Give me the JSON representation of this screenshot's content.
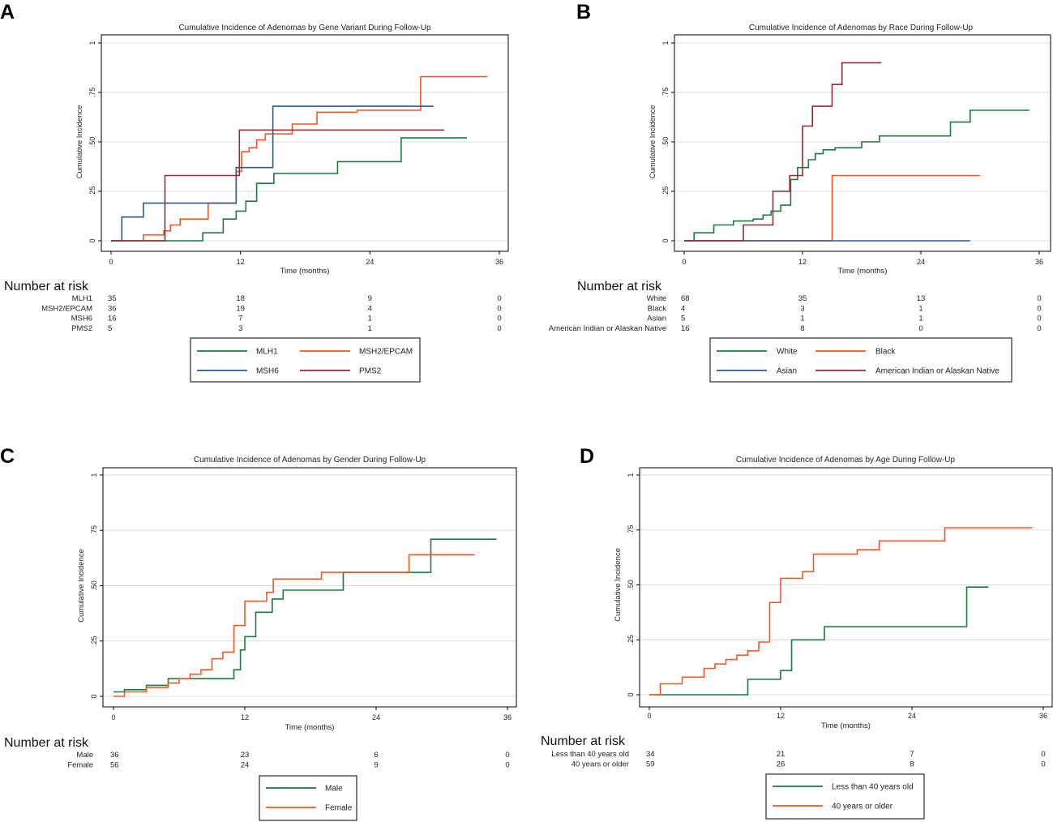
{
  "colors": {
    "green": "#1d7a3e",
    "orange": "#ef5a2a",
    "blue": "#2b5a86",
    "maroon": "#8b2f34",
    "grid": "#dcdcdc",
    "frame": "#000000"
  },
  "chart_data": [
    {
      "type": "line",
      "panel": "A",
      "title": "Cumulative Incidence of Adenomas by Gene Variant During Follow-Up",
      "xlabel": "Time (months)",
      "ylabel": "Cumulative Incidence",
      "xlim": [
        0,
        36
      ],
      "ylim": [
        0,
        1
      ],
      "xticks": [
        0,
        12,
        24,
        36
      ],
      "yticks": [
        0,
        0.25,
        0.5,
        0.75,
        1
      ],
      "ytick_labels": [
        "0",
        ".25",
        ".50",
        ".75",
        "1"
      ],
      "grid": true,
      "series": [
        {
          "name": "MLH1",
          "color": "green",
          "x": [
            0,
            7.9,
            8.5,
            10.4,
            11.6,
            12.5,
            13.5,
            15.1,
            18.0,
            21.0,
            26.9,
            33.0
          ],
          "y": [
            0,
            0,
            0.04,
            0.11,
            0.15,
            0.2,
            0.29,
            0.34,
            0.34,
            0.4,
            0.52,
            0.52
          ]
        },
        {
          "name": "MSH2/EPCAM",
          "color": "orange",
          "x": [
            0,
            3.0,
            4.9,
            5.5,
            6.4,
            7.4,
            9.0,
            11.6,
            12.1,
            12.8,
            13.5,
            14.3,
            15.2,
            16.8,
            19.1,
            22.8,
            28.7,
            34.9
          ],
          "y": [
            0,
            0.03,
            0.05,
            0.08,
            0.11,
            0.11,
            0.19,
            0.35,
            0.45,
            0.47,
            0.51,
            0.54,
            0.54,
            0.59,
            0.65,
            0.66,
            0.83,
            0.83
          ]
        },
        {
          "name": "MSH6",
          "color": "blue",
          "x": [
            0,
            1.0,
            3.0,
            11.0,
            11.6,
            15.0,
            29.9
          ],
          "y": [
            0,
            0.12,
            0.19,
            0.19,
            0.37,
            0.68,
            0.68
          ]
        },
        {
          "name": "PMS2",
          "color": "maroon",
          "x": [
            0,
            5.0,
            11.9,
            30.9
          ],
          "y": [
            0,
            0.33,
            0.56,
            0.56
          ]
        }
      ],
      "risk": {
        "title": "Number at risk",
        "times": [
          0,
          12,
          24,
          36
        ],
        "rows": [
          {
            "label": "MLH1",
            "values": [
              "35",
              "18",
              "9",
              "0"
            ]
          },
          {
            "label": "MSH2/EPCAM",
            "values": [
              "36",
              "19",
              "4",
              "0"
            ]
          },
          {
            "label": "MSH6",
            "values": [
              "16",
              "7",
              "1",
              "0"
            ]
          },
          {
            "label": "PMS2",
            "values": [
              "5",
              "3",
              "1",
              "0"
            ]
          }
        ]
      },
      "legend": [
        {
          "label": "MLH1",
          "color": "green"
        },
        {
          "label": "MSH2/EPCAM",
          "color": "orange"
        },
        {
          "label": "MSH6",
          "color": "blue"
        },
        {
          "label": "PMS2",
          "color": "maroon"
        }
      ]
    },
    {
      "type": "line",
      "panel": "B",
      "title": "Cumulative Incidence of Adenomas by Race During Follow-Up",
      "xlabel": "Time (months)",
      "ylabel": "Cumulative Incidence",
      "xlim": [
        0,
        36
      ],
      "ylim": [
        0,
        1
      ],
      "xticks": [
        0,
        12,
        24,
        36
      ],
      "yticks": [
        0,
        0.25,
        0.5,
        0.75,
        1
      ],
      "ytick_labels": [
        "0",
        ".25",
        ".50",
        ".75",
        "1"
      ],
      "grid": true,
      "series": [
        {
          "name": "White",
          "color": "green",
          "x": [
            0,
            1.0,
            3.0,
            5.0,
            7.0,
            8.0,
            8.8,
            9.8,
            10.8,
            11.5,
            12.6,
            13.3,
            14.1,
            15.3,
            18.0,
            19.8,
            27.0,
            29.0,
            35.0
          ],
          "y": [
            0,
            0.04,
            0.08,
            0.1,
            0.11,
            0.13,
            0.15,
            0.18,
            0.31,
            0.37,
            0.41,
            0.44,
            0.46,
            0.47,
            0.5,
            0.53,
            0.6,
            0.66,
            0.66
          ]
        },
        {
          "name": "Black",
          "color": "orange",
          "x": [
            0,
            15.0,
            30.0
          ],
          "y": [
            0,
            0.33,
            0.33
          ]
        },
        {
          "name": "Asian",
          "color": "blue",
          "x": [
            0,
            29.0
          ],
          "y": [
            0,
            0
          ]
        },
        {
          "name": "American Indian or Alaskan Native",
          "color": "maroon",
          "x": [
            0,
            6.0,
            9.0,
            10.7,
            12.0,
            13.0,
            15.0,
            16.0,
            20.0
          ],
          "y": [
            0,
            0.08,
            0.25,
            0.33,
            0.58,
            0.68,
            0.79,
            0.9,
            0.9
          ]
        }
      ],
      "risk": {
        "title": "Number at risk",
        "times": [
          0,
          12,
          24,
          36
        ],
        "rows": [
          {
            "label": "White",
            "values": [
              "68",
              "35",
              "13",
              "0"
            ]
          },
          {
            "label": "Black",
            "values": [
              "4",
              "3",
              "1",
              "0"
            ]
          },
          {
            "label": "Asian",
            "values": [
              "5",
              "1",
              "1",
              "0"
            ]
          },
          {
            "label": "American Indian or Alaskan Native",
            "values": [
              "16",
              "8",
              "0",
              "0"
            ]
          }
        ]
      },
      "legend": [
        {
          "label": "White",
          "color": "green"
        },
        {
          "label": "Black",
          "color": "orange"
        },
        {
          "label": "Asian",
          "color": "blue"
        },
        {
          "label": "American Indian or Alaskan Native",
          "color": "maroon"
        }
      ]
    },
    {
      "type": "line",
      "panel": "C",
      "title": "Cumulative Incidence of Adenomas by Gender During Follow-Up",
      "xlabel": "Time (months)",
      "ylabel": "Cumulative Incidence",
      "xlim": [
        0,
        36
      ],
      "ylim": [
        0,
        1
      ],
      "xticks": [
        0,
        12,
        24,
        36
      ],
      "yticks": [
        0,
        0.25,
        0.5,
        0.75,
        1
      ],
      "ytick_labels": [
        "0",
        ".25",
        ".50",
        ".75",
        "1"
      ],
      "grid": true,
      "series": [
        {
          "name": "Male",
          "color": "green",
          "x": [
            0,
            1.0,
            3.0,
            5.0,
            11.0,
            11.6,
            12.0,
            13.0,
            14.5,
            15.5,
            21.0,
            29.0,
            35.0
          ],
          "y": [
            0.02,
            0.03,
            0.05,
            0.08,
            0.12,
            0.21,
            0.27,
            0.38,
            0.44,
            0.48,
            0.56,
            0.71,
            0.71
          ]
        },
        {
          "name": "Female",
          "color": "orange",
          "x": [
            0,
            1.0,
            3.0,
            5.0,
            6.0,
            7.0,
            8.0,
            9.0,
            10.0,
            11.0,
            12.0,
            14.0,
            14.6,
            19.0,
            27.0,
            33.0
          ],
          "y": [
            0,
            0.02,
            0.04,
            0.06,
            0.08,
            0.1,
            0.12,
            0.17,
            0.2,
            0.32,
            0.43,
            0.47,
            0.53,
            0.56,
            0.64,
            0.64
          ]
        }
      ],
      "risk": {
        "title": "Number at risk",
        "times": [
          0,
          12,
          24,
          36
        ],
        "rows": [
          {
            "label": "Male",
            "values": [
              "36",
              "23",
              "6",
              "0"
            ]
          },
          {
            "label": "Female",
            "values": [
              "56",
              "24",
              "9",
              "0"
            ]
          }
        ]
      },
      "legend": [
        {
          "label": "Male",
          "color": "green"
        },
        {
          "label": "Female",
          "color": "orange"
        }
      ]
    },
    {
      "type": "line",
      "panel": "D",
      "title": "Cumulative Incidence of Adenomas by Age During Follow-Up",
      "xlabel": "Time (months)",
      "ylabel": "Cumulative Incidence",
      "xlim": [
        0,
        36
      ],
      "ylim": [
        0,
        1
      ],
      "xticks": [
        0,
        12,
        24,
        36
      ],
      "yticks": [
        0,
        0.25,
        0.5,
        0.75,
        1
      ],
      "ytick_labels": [
        "0",
        ".25",
        ".50",
        ".75",
        "1"
      ],
      "grid": true,
      "series": [
        {
          "name": "Less than 40 years old",
          "color": "green",
          "x": [
            0,
            9.0,
            12.0,
            13.0,
            16.0,
            29.0,
            31.0
          ],
          "y": [
            0,
            0.07,
            0.11,
            0.25,
            0.31,
            0.49,
            0.49
          ]
        },
        {
          "name": "40 years or older",
          "color": "orange",
          "x": [
            0,
            1.0,
            3.0,
            5.0,
            6.0,
            7.0,
            8.0,
            9.0,
            10.0,
            11.0,
            12.0,
            14.0,
            15.0,
            19.0,
            21.0,
            27.0,
            35.0
          ],
          "y": [
            0,
            0.05,
            0.08,
            0.12,
            0.14,
            0.16,
            0.18,
            0.2,
            0.24,
            0.42,
            0.53,
            0.56,
            0.64,
            0.66,
            0.7,
            0.76,
            0.76
          ]
        }
      ],
      "risk": {
        "title": "Number at risk",
        "times": [
          0,
          12,
          24,
          36
        ],
        "rows": [
          {
            "label": "Less than 40 years old",
            "values": [
              "34",
              "21",
              "7",
              "0"
            ]
          },
          {
            "label": "40 years or older",
            "values": [
              "59",
              "26",
              "8",
              "0"
            ]
          }
        ]
      },
      "legend": [
        {
          "label": "Less than 40 years old",
          "color": "green"
        },
        {
          "label": "40 years or older",
          "color": "orange"
        }
      ]
    }
  ]
}
